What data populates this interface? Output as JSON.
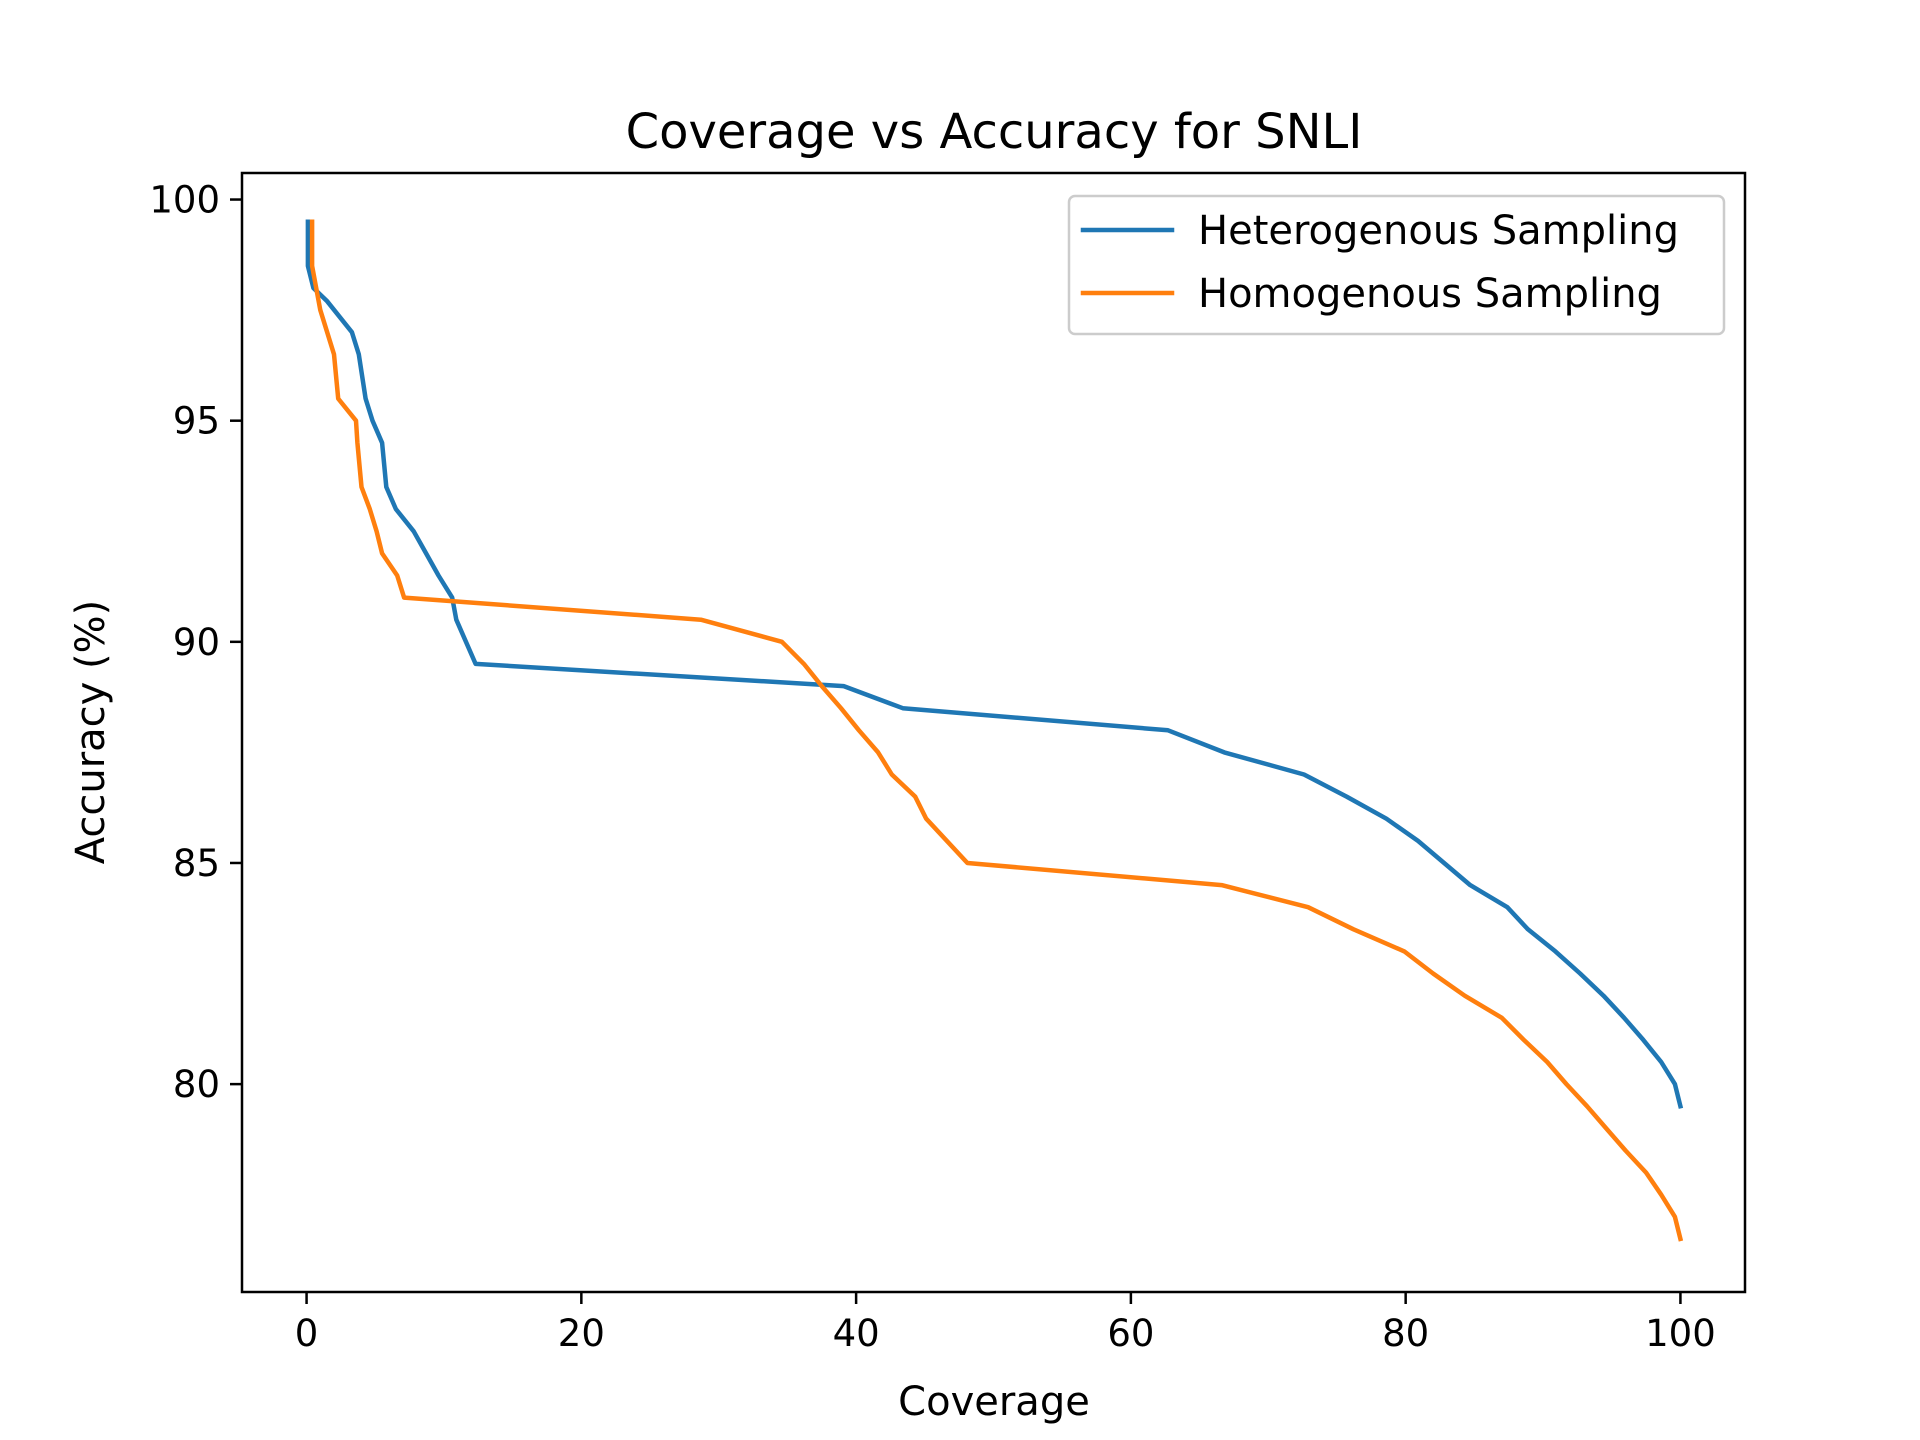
{
  "chart_data": {
    "type": "line",
    "title": "Coverage vs Accuracy for SNLI",
    "xlabel": "Coverage",
    "ylabel": "Accuracy (%)",
    "xlim": [
      -4.7,
      104.7
    ],
    "ylim": [
      75.3,
      100.6
    ],
    "xticks": [
      0,
      20,
      40,
      60,
      80,
      100
    ],
    "yticks": [
      80,
      85,
      90,
      95,
      100
    ],
    "grid": false,
    "legend_position": "top-right",
    "series": [
      {
        "name": "Heterogenous Sampling",
        "color": "#1f77b4",
        "points": [
          [
            0.1,
            99.5
          ],
          [
            0.1,
            98.5
          ],
          [
            0.5,
            98.0
          ],
          [
            1.5,
            97.7
          ],
          [
            3.3,
            97.0
          ],
          [
            3.8,
            96.5
          ],
          [
            4.3,
            95.5
          ],
          [
            4.8,
            95.0
          ],
          [
            5.5,
            94.5
          ],
          [
            5.8,
            93.5
          ],
          [
            6.5,
            93.0
          ],
          [
            7.8,
            92.5
          ],
          [
            8.7,
            92.0
          ],
          [
            9.6,
            91.5
          ],
          [
            10.6,
            91.0
          ],
          [
            10.9,
            90.5
          ],
          [
            12.3,
            89.5
          ],
          [
            39.1,
            89.0
          ],
          [
            43.4,
            88.5
          ],
          [
            62.7,
            88.0
          ],
          [
            66.8,
            87.5
          ],
          [
            72.6,
            87.0
          ],
          [
            75.7,
            86.5
          ],
          [
            78.6,
            86.0
          ],
          [
            80.9,
            85.5
          ],
          [
            82.8,
            85.0
          ],
          [
            84.7,
            84.5
          ],
          [
            87.4,
            84.0
          ],
          [
            88.9,
            83.5
          ],
          [
            90.9,
            83.0
          ],
          [
            92.7,
            82.5
          ],
          [
            94.4,
            82.0
          ],
          [
            95.9,
            81.5
          ],
          [
            97.3,
            81.0
          ],
          [
            98.6,
            80.5
          ],
          [
            99.6,
            80.0
          ],
          [
            100.0,
            79.5
          ]
        ]
      },
      {
        "name": "Homogenous Sampling",
        "color": "#ff7f0e",
        "points": [
          [
            0.4,
            99.5
          ],
          [
            0.4,
            98.5
          ],
          [
            0.7,
            98.0
          ],
          [
            1.0,
            97.5
          ],
          [
            2.0,
            96.5
          ],
          [
            2.3,
            95.5
          ],
          [
            3.6,
            95.0
          ],
          [
            3.7,
            94.5
          ],
          [
            4.0,
            93.5
          ],
          [
            4.6,
            93.0
          ],
          [
            5.1,
            92.5
          ],
          [
            5.5,
            92.0
          ],
          [
            6.6,
            91.5
          ],
          [
            7.1,
            91.0
          ],
          [
            28.7,
            90.5
          ],
          [
            34.6,
            90.0
          ],
          [
            36.2,
            89.5
          ],
          [
            37.5,
            89.0
          ],
          [
            38.9,
            88.5
          ],
          [
            40.2,
            88.0
          ],
          [
            41.6,
            87.5
          ],
          [
            42.6,
            87.0
          ],
          [
            44.3,
            86.5
          ],
          [
            45.1,
            86.0
          ],
          [
            48.1,
            85.0
          ],
          [
            66.6,
            84.5
          ],
          [
            72.9,
            84.0
          ],
          [
            76.2,
            83.5
          ],
          [
            79.9,
            83.0
          ],
          [
            82.0,
            82.5
          ],
          [
            84.3,
            82.0
          ],
          [
            87.0,
            81.5
          ],
          [
            88.6,
            81.0
          ],
          [
            90.3,
            80.5
          ],
          [
            91.7,
            80.0
          ],
          [
            93.2,
            79.5
          ],
          [
            94.6,
            79.0
          ],
          [
            96.0,
            78.5
          ],
          [
            97.5,
            78.0
          ],
          [
            98.6,
            77.5
          ],
          [
            99.6,
            77.0
          ],
          [
            100.0,
            76.5
          ]
        ]
      }
    ]
  }
}
